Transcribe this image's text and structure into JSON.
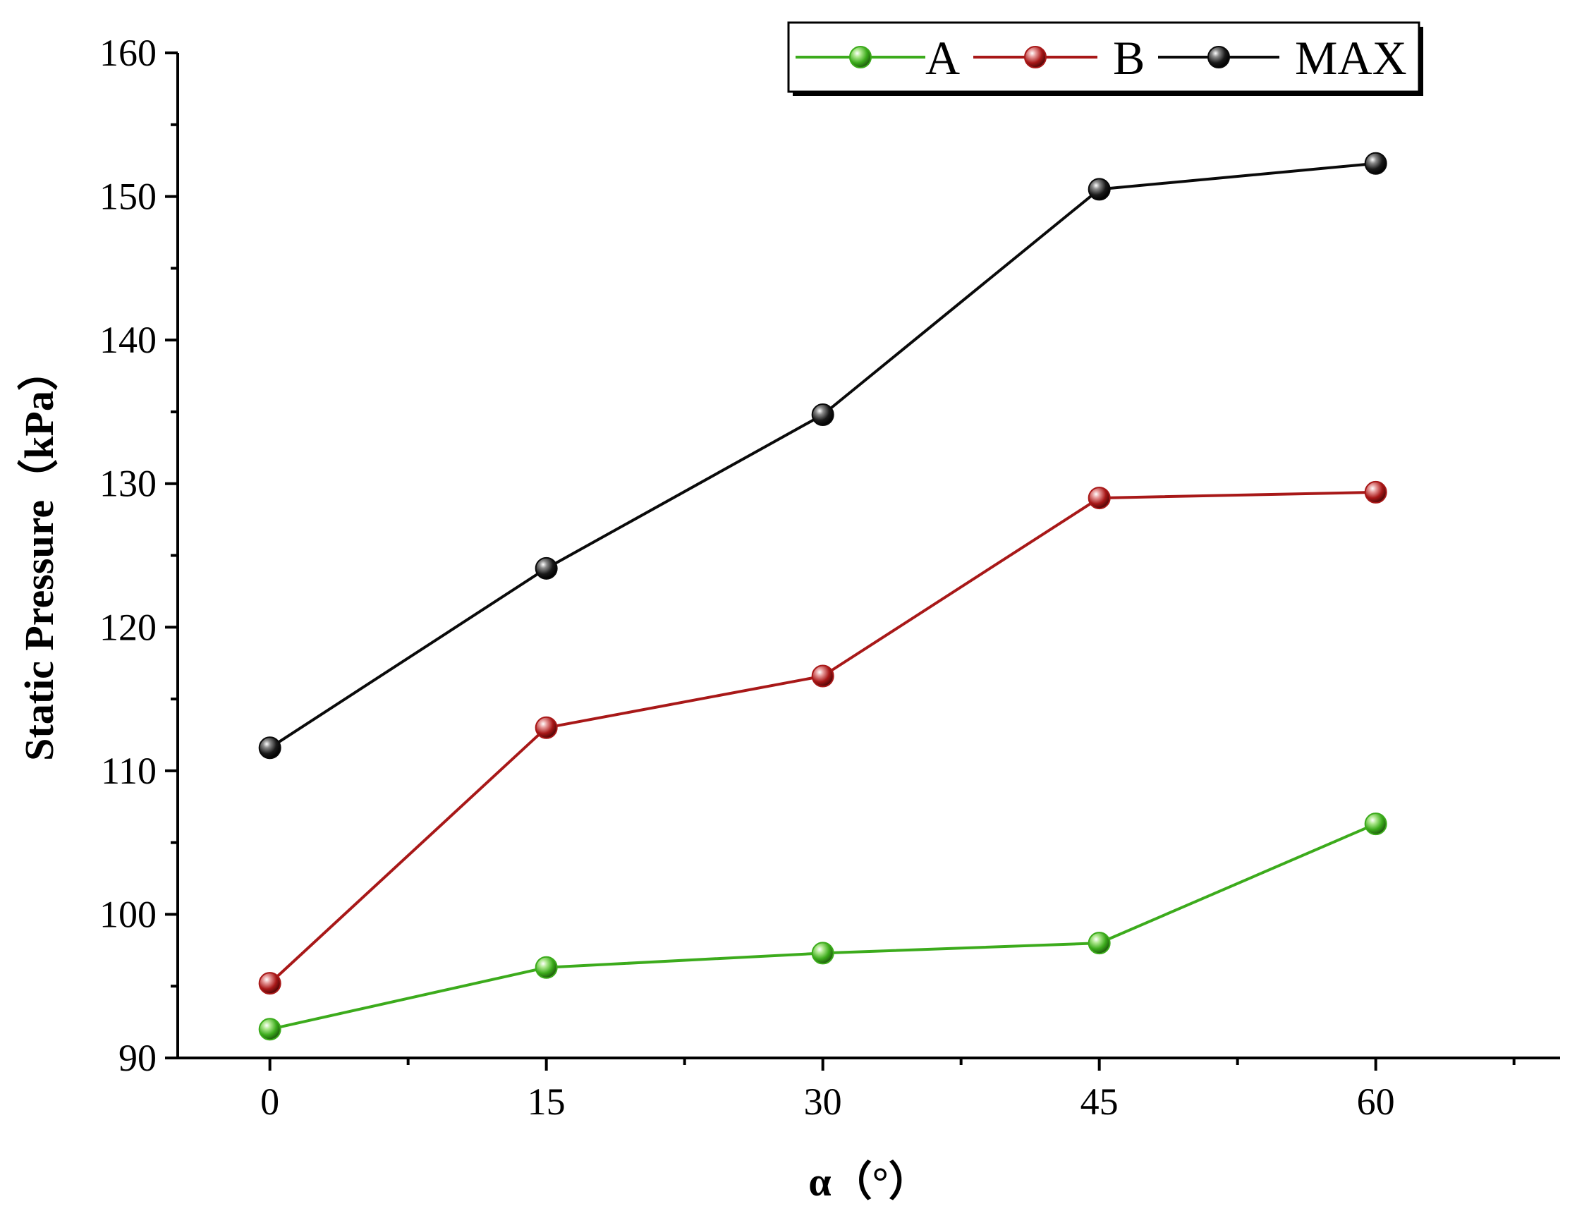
{
  "chart_data": {
    "type": "line",
    "title": "",
    "xlabel": "α（°）",
    "ylabel": "Static Pressure（kPa）",
    "x": [
      0,
      15,
      30,
      45,
      60
    ],
    "xlim": [
      -5,
      70
    ],
    "ylim": [
      90,
      160
    ],
    "xticks": [
      0,
      15,
      30,
      45,
      60
    ],
    "yticks": [
      90,
      100,
      110,
      120,
      130,
      140,
      150,
      160
    ],
    "xtick_labels": [
      "0",
      "15",
      "30",
      "45",
      "60"
    ],
    "ytick_labels": [
      "90",
      "100",
      "110",
      "120",
      "130",
      "140",
      "150",
      "160"
    ],
    "grid": false,
    "legend_position": "top-right",
    "series": [
      {
        "name": "A",
        "color": "#3cab1c",
        "values": [
          92.0,
          96.3,
          97.3,
          98.0,
          106.3
        ]
      },
      {
        "name": "B",
        "color": "#a81818",
        "values": [
          95.2,
          113.0,
          116.6,
          129.0,
          129.4
        ]
      },
      {
        "name": "MAX",
        "color": "#0a0a0a",
        "values": [
          111.6,
          124.1,
          134.8,
          150.5,
          152.3
        ]
      }
    ]
  }
}
